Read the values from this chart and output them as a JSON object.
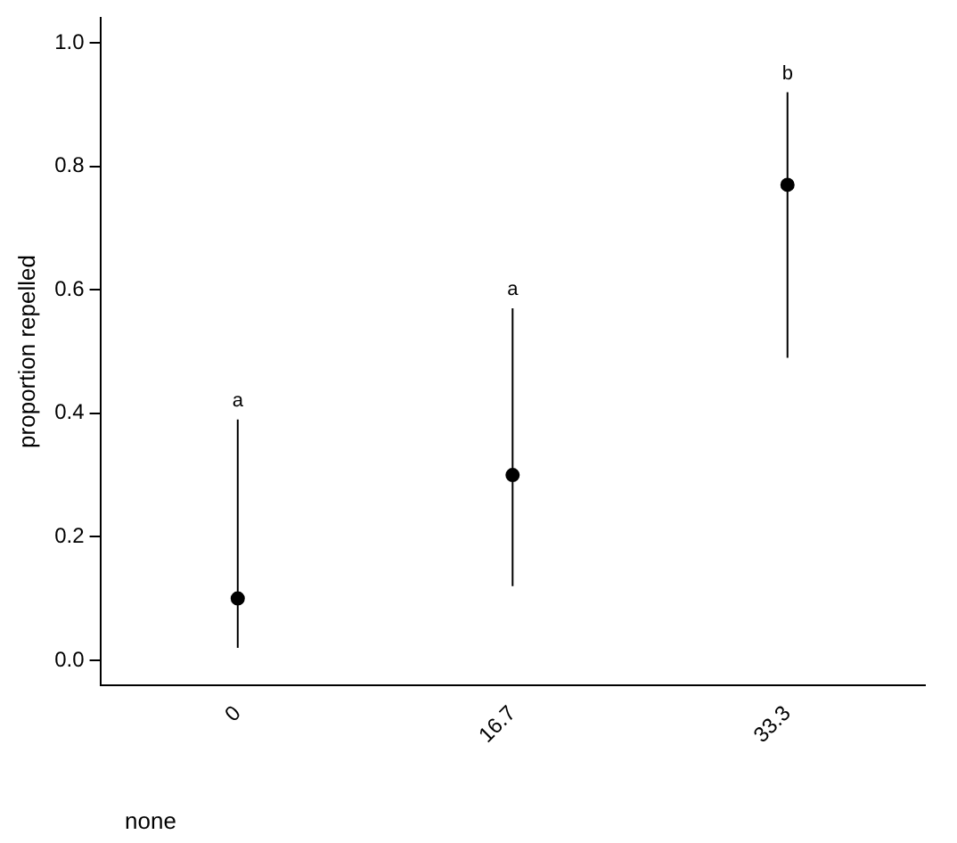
{
  "chart_data": {
    "type": "scatter",
    "ylabel": "proportion repelled",
    "categories": [
      "0",
      "16.7",
      "33.3"
    ],
    "values": [
      0.1,
      0.3,
      0.77
    ],
    "errors": [
      [
        0.02,
        0.39
      ],
      [
        0.12,
        0.57
      ],
      [
        0.49,
        0.92
      ]
    ],
    "color": "#000000",
    "marker": "circle",
    "ylim": [
      -0.04,
      1.04
    ],
    "yticks": [
      {
        "value": 0,
        "label": "0.0"
      },
      0.2,
      0.4,
      0.6,
      0.8,
      {
        "value": 1,
        "label": "1.0"
      }
    ],
    "grid": false,
    "legend": false,
    "annotations": [
      "a",
      "a",
      "b",
      "none"
    ]
  }
}
